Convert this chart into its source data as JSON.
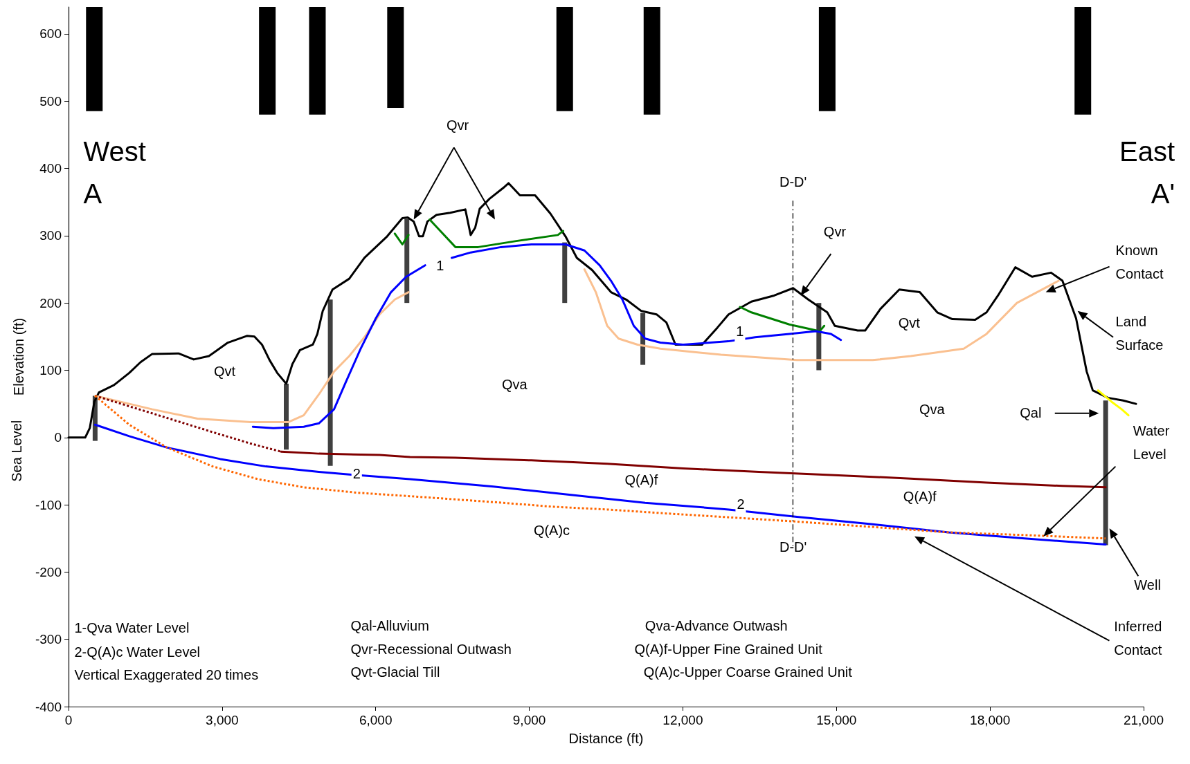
{
  "chart_data": {
    "type": "line",
    "xlabel": "Distance (ft)",
    "ylabel": "Elevation (ft)",
    "xlim": [
      0,
      21000
    ],
    "ylim": [
      -400,
      640
    ],
    "xticks": [
      0,
      {
        "value": 3000,
        "label": "3,000"
      },
      {
        "value": 6000,
        "label": "6,000"
      },
      {
        "value": 9000,
        "label": "9,000"
      },
      {
        "value": 12000,
        "label": "12,000"
      },
      {
        "value": 15000,
        "label": "15,000"
      },
      {
        "value": 18000,
        "label": "18,000"
      },
      {
        "value": 21000,
        "label": "21,000"
      }
    ],
    "yticks": [
      -400,
      -300,
      -200,
      -100,
      0,
      100,
      200,
      300,
      400,
      500,
      600
    ],
    "grid": false,
    "marker": "none",
    "series": [
      {
        "color": "#000000",
        "x": [
          0,
          326,
          415,
          504,
          593,
          889,
          1186,
          1408,
          1630,
          2149,
          2445,
          2742,
          3112,
          3483,
          3631,
          3779,
          3927,
          4076,
          4253,
          4372,
          4520,
          4772,
          4861,
          4965,
          5157,
          5483,
          5780,
          6224,
          6521,
          6625,
          6743,
          6847,
          6921,
          7010,
          7188,
          7455,
          7751,
          7855,
          7944,
          8032,
          8225,
          8492,
          8596,
          8818,
          9114,
          9411,
          9707,
          9929,
          10226,
          10596,
          10893,
          11189,
          11486,
          11678,
          11856,
          12375,
          12671,
          12893,
          13338,
          13783,
          14153,
          14450,
          14820,
          14968,
          15413,
          15561,
          15858,
          16228,
          16628,
          16969,
          17265,
          17710,
          17932,
          18155,
          18495,
          18821,
          19192,
          19414,
          19681,
          19888,
          20007,
          20303,
          20600,
          20852
        ],
        "values": [
          0,
          0,
          14,
          53,
          67,
          78,
          96,
          112,
          124,
          125,
          116,
          121,
          141,
          151,
          150,
          138,
          115,
          96,
          80,
          109,
          130,
          138,
          154,
          188,
          220,
          236,
          267,
          299,
          326,
          327,
          321,
          299,
          299,
          321,
          331,
          334,
          339,
          301,
          312,
          340,
          355,
          371,
          378,
          360,
          360,
          333,
          299,
          267,
          249,
          216,
          205,
          188,
          183,
          171,
          138,
          138,
          163,
          183,
          202,
          211,
          222,
          205,
          186,
          166,
          159,
          159,
          191,
          220,
          216,
          186,
          176,
          175,
          186,
          211,
          253,
          239,
          245,
          233,
          177,
          98,
          70,
          59,
          55,
          50
        ]
      },
      {
        "color": "#fac090",
        "x": [
          519,
          1630,
          2519,
          3557,
          4298,
          4594,
          4890,
          5187,
          5483,
          5780,
          6076,
          6373,
          6640,
          8000,
          10077,
          10300,
          10522,
          10745,
          11115,
          11560,
          12745,
          14227,
          15709,
          16450,
          17488,
          17932,
          18525,
          19340
        ],
        "values": [
          62,
          42,
          28,
          23,
          23,
          33,
          64,
          98,
          121,
          149,
          183,
          205,
          216,
          null,
          250,
          216,
          166,
          147,
          138,
          132,
          123,
          115,
          115,
          121,
          132,
          154,
          200,
          233
        ]
      },
      {
        "color": "#008000",
        "x": [
          6373,
          6521,
          6640,
          6800,
          7054,
          7262,
          7558,
          8003,
          8744,
          9559,
          9663,
          11000,
          13116,
          13338,
          14079,
          14672,
          14761
        ],
        "values": [
          303,
          287,
          301,
          null,
          324,
          307,
          283,
          283,
          292,
          301,
          307,
          null,
          194,
          186,
          168,
          158,
          166
        ]
      },
      {
        "color": "#0000ff",
        "x": [
          3601,
          4001,
          4594,
          4890,
          5187,
          5409,
          5706,
          6002,
          6299,
          6595,
          6966,
          7188,
          7484,
          7855,
          8447,
          9040,
          9707,
          10077,
          10374,
          10596,
          10819,
          11041,
          11263,
          11560,
          12005,
          12893,
          13412,
          14079,
          14598,
          14894,
          15087
        ],
        "values": [
          16,
          14,
          16,
          21,
          42,
          81,
          132,
          177,
          216,
          239,
          256,
          null,
          267,
          275,
          283,
          287,
          287,
          278,
          256,
          233,
          205,
          166,
          147,
          141,
          138,
          143,
          149,
          154,
          158,
          154,
          145
        ]
      },
      {
        "color": "#0000ff",
        "x": [
          519,
          1186,
          1927,
          2964,
          3853,
          4890,
          5483,
          6669,
          8299,
          9781,
          11263,
          12893,
          14227,
          15709,
          17191,
          18673,
          20258
        ],
        "values": [
          19,
          2,
          -15,
          -32,
          -43,
          -51,
          -55,
          -62,
          -73,
          -85,
          -97,
          -107,
          -118,
          -129,
          -141,
          -150,
          -159
        ]
      },
      {
        "color": "#800000",
        "line_style": "dotted",
        "x": [
          519,
          1630,
          2816,
          3557,
          4150
        ],
        "values": [
          62,
          36,
          8,
          -9,
          -21
        ]
      },
      {
        "color": "#800000",
        "x": [
          4150,
          4890,
          6076,
          6669,
          7558,
          9040,
          10522,
          12005,
          13486,
          14968,
          16450,
          17932,
          19414,
          20258
        ],
        "values": [
          -21,
          -24,
          -26,
          -29,
          -30,
          -34,
          -39,
          -46,
          -51,
          -56,
          -61,
          -67,
          -72,
          -74
        ]
      },
      {
        "color": "#ff6600",
        "line_style": "dotted",
        "x": [
          519,
          1186,
          1927,
          2816,
          3705,
          4594,
          5632,
          6817,
          8299,
          9485,
          10522,
          11708,
          13190,
          14227,
          15709,
          17191,
          18673,
          20258
        ],
        "values": [
          62,
          19,
          -15,
          -43,
          -62,
          -74,
          -82,
          -88,
          -96,
          -103,
          -107,
          -113,
          -120,
          -125,
          -133,
          -141,
          -145,
          -150
        ]
      },
      {
        "color": "#ffff00",
        "x": [
          20110,
          20377,
          20570,
          20704
        ],
        "values": [
          70,
          53,
          42,
          33
        ]
      },
      {
        "color": "#000000",
        "line_style": "dashed",
        "x": [
          14150,
          14150
        ],
        "values": [
          352,
          -161
        ]
      },
      {
        "type": "bar",
        "color": "#404040",
        "x": [
          519,
          4253,
          5113,
          6609,
          9692,
          11218,
          14656,
          20258
        ],
        "base": [
          -5,
          -18,
          -42,
          200,
          200,
          108,
          100,
          -160
        ],
        "values": [
          67,
          98,
          247,
          125,
          90,
          77,
          100,
          215
        ]
      },
      {
        "type": "bar",
        "color": "#000000",
        "x": [
          504,
          3883,
          4861,
          6387,
          9692,
          11396,
          14819,
          19813
        ],
        "base": [
          485,
          480,
          480,
          490,
          485,
          480,
          485,
          480
        ],
        "values": [
          155,
          160,
          160,
          150,
          155,
          160,
          155,
          160
        ]
      }
    ],
    "annotations": [
      "West",
      "A",
      "East",
      "A'",
      "Qvr",
      "Qvt",
      "Qva",
      "Qvr",
      "Qvt",
      "Qva",
      "Qal",
      "Known\nContact",
      "Land\nSurface",
      "Water\nLevel",
      "Well",
      "Inferred\nContact",
      "Q(A)f",
      "Q(A)f",
      "Q(A)c",
      "1",
      "1",
      "2",
      "2",
      "D-D'",
      "D-D'",
      "1-Qva Water Level",
      "2-Q(A)c Water Level",
      "Vertical Exaggerated 20 times",
      "Qal-Alluvium",
      "Qvr-Recessional Outwash",
      "Qvt-Glacial Till",
      "Qva-Advance Outwash",
      "Q(A)f-Upper Fine Grained Unit",
      "Q(A)c-Upper Coarse Grained Unit",
      "Sea Level"
    ]
  }
}
